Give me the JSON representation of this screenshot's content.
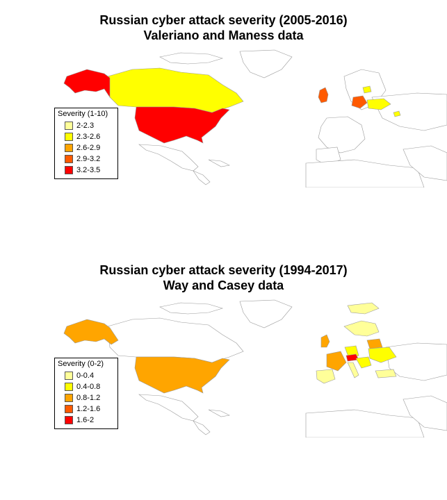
{
  "panels": [
    {
      "title_line1": "Russian cyber attack severity (2005-2016)",
      "title_line2": "Valeriano and Maness data",
      "legend": {
        "title": "Severity (1-10)",
        "items": [
          {
            "label": "2-2.3",
            "color": "#ffff99"
          },
          {
            "label": "2.3-2.6",
            "color": "#ffff00"
          },
          {
            "label": "2.6-2.9",
            "color": "#ffa500"
          },
          {
            "label": "2.9-3.2",
            "color": "#ff5a00"
          },
          {
            "label": "3.2-3.5",
            "color": "#ff0000"
          }
        ]
      }
    },
    {
      "title_line1": "Russian cyber attack severity (1994-2017)",
      "title_line2": "Way and Casey data",
      "legend": {
        "title": "Severity (0-2)",
        "items": [
          {
            "label": "0-0.4",
            "color": "#ffff99"
          },
          {
            "label": "0.4-0.8",
            "color": "#ffff00"
          },
          {
            "label": "0.8-1.2",
            "color": "#ffa500"
          },
          {
            "label": "1.2-1.6",
            "color": "#ff5a00"
          },
          {
            "label": "1.6-2",
            "color": "#ff0000"
          }
        ]
      }
    }
  ]
}
